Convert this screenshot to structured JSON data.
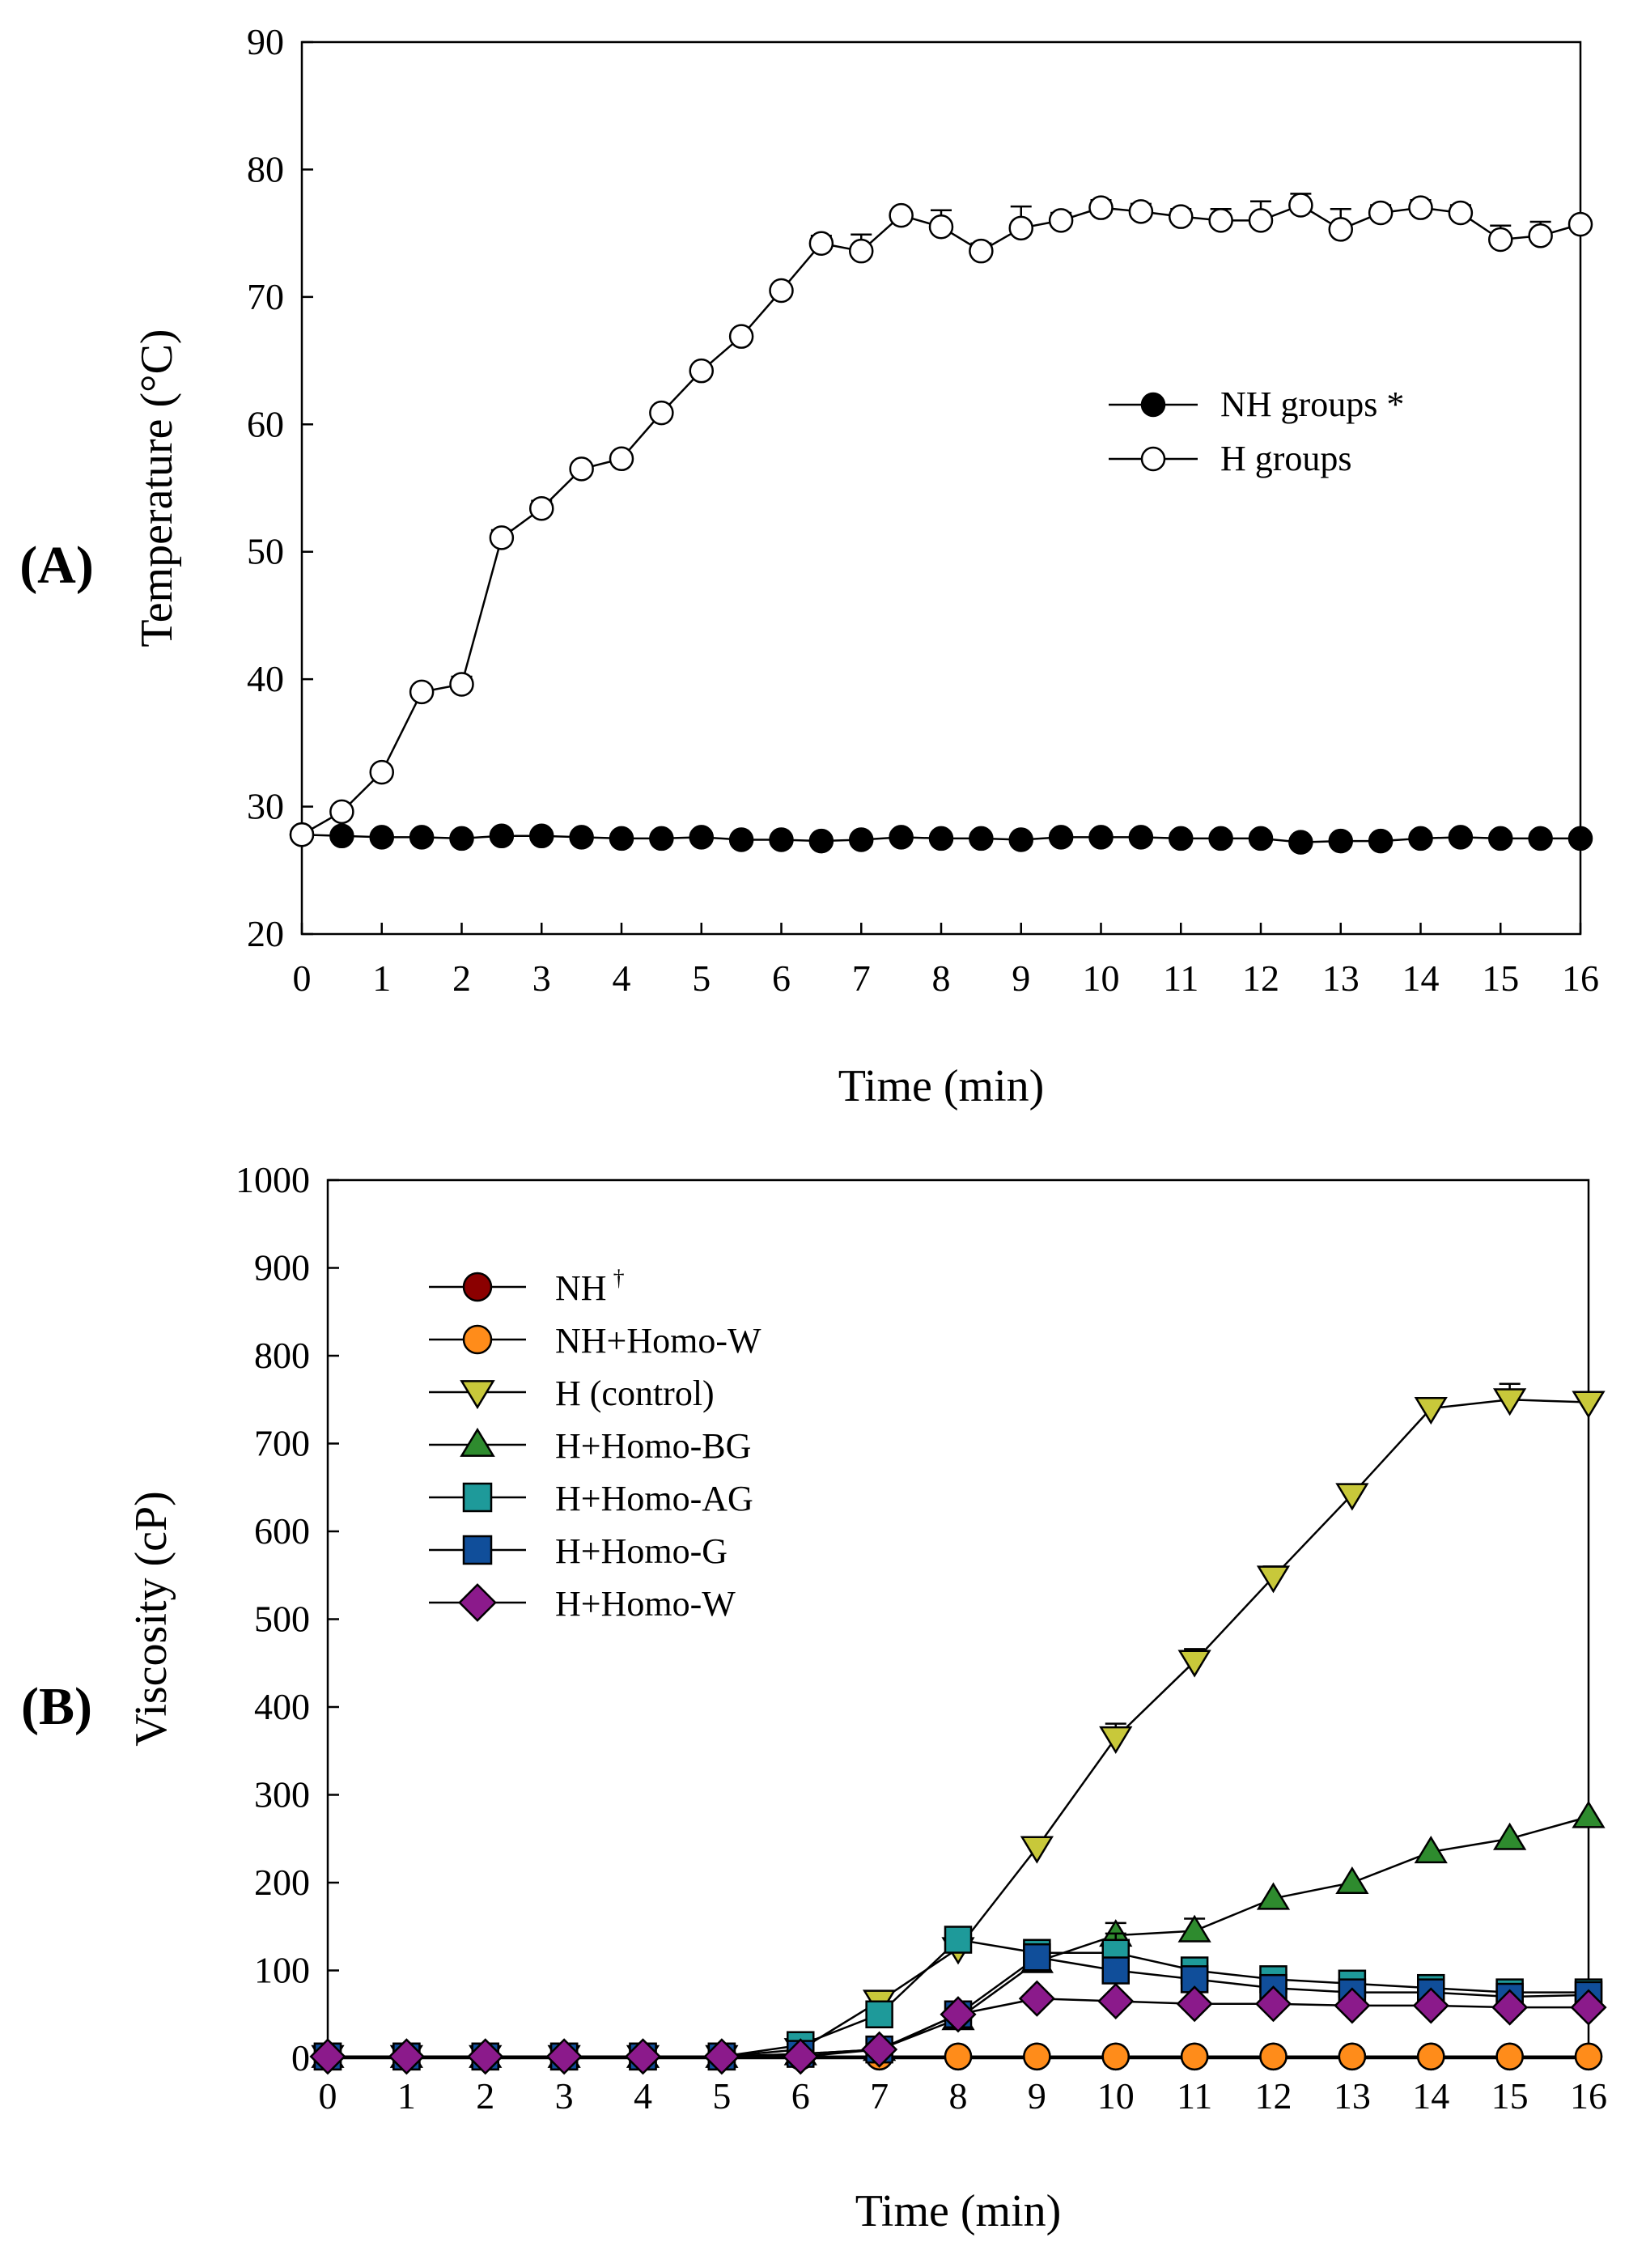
{
  "chart_data": [
    {
      "type": "line",
      "panel_label": "(A)",
      "xlabel": "Time (min)",
      "ylabel": "Temperature (°C)",
      "xlim": [
        0,
        16
      ],
      "ylim": [
        20,
        90
      ],
      "xticks": [
        0,
        1,
        2,
        3,
        4,
        5,
        6,
        7,
        8,
        9,
        10,
        11,
        12,
        13,
        14,
        15,
        16
      ],
      "yticks": [
        20,
        30,
        40,
        50,
        60,
        70,
        80,
        90
      ],
      "grid": false,
      "legend_position": "right-middle",
      "x": [
        0,
        0.5,
        1,
        1.5,
        2,
        2.5,
        3,
        3.5,
        4,
        4.5,
        5,
        5.5,
        6,
        6.5,
        7,
        7.5,
        8,
        8.5,
        9,
        9.5,
        10,
        10.5,
        11,
        11.5,
        12,
        12.5,
        13,
        13.5,
        14,
        14.5,
        15,
        15.5,
        16
      ],
      "series": [
        {
          "name": "NH groups *",
          "marker": "circle",
          "fill": "#000000",
          "values": [
            27.8,
            27.7,
            27.6,
            27.6,
            27.5,
            27.7,
            27.7,
            27.6,
            27.5,
            27.5,
            27.6,
            27.4,
            27.4,
            27.3,
            27.4,
            27.6,
            27.5,
            27.5,
            27.4,
            27.6,
            27.6,
            27.6,
            27.5,
            27.5,
            27.5,
            27.2,
            27.3,
            27.3,
            27.5,
            27.6,
            27.5,
            27.5,
            27.5
          ],
          "errors": [
            0.3,
            0.3,
            0.3,
            0.3,
            0.3,
            0.3,
            0.3,
            0.3,
            0.3,
            0.3,
            0.3,
            0.3,
            0.3,
            0.3,
            0.3,
            0.3,
            0.3,
            0.3,
            0.3,
            0.3,
            0.3,
            0.3,
            0.3,
            0.3,
            0.3,
            0.3,
            0.3,
            0.3,
            0.3,
            0.3,
            0.3,
            0.3,
            0.3
          ]
        },
        {
          "name": "H groups",
          "marker": "circle",
          "fill": "#ffffff",
          "values": [
            27.8,
            29.6,
            32.7,
            39.0,
            39.6,
            51.1,
            53.4,
            56.5,
            57.3,
            60.9,
            64.2,
            66.9,
            70.5,
            74.2,
            73.6,
            76.4,
            75.5,
            73.6,
            75.4,
            76.0,
            77.0,
            76.7,
            76.3,
            76.0,
            76.0,
            77.2,
            75.3,
            76.6,
            77.0,
            76.6,
            74.5,
            74.8,
            75.7
          ],
          "errors": [
            0.4,
            0.4,
            0.5,
            0.5,
            0.6,
            0.6,
            0.6,
            0.5,
            0.5,
            0.5,
            0.5,
            0.5,
            0.5,
            0.6,
            1.3,
            0.5,
            1.3,
            0.6,
            1.7,
            0.6,
            0.6,
            0.6,
            0.6,
            0.9,
            1.5,
            0.9,
            1.6,
            0.6,
            0.6,
            0.6,
            1.1,
            1.1,
            0.5
          ]
        }
      ]
    },
    {
      "type": "line",
      "panel_label": "(B)",
      "xlabel": "Time (min)",
      "ylabel": "Viscosity (cP)",
      "xlim": [
        0,
        16
      ],
      "ylim": [
        0,
        1000
      ],
      "xticks": [
        0,
        1,
        2,
        3,
        4,
        5,
        6,
        7,
        8,
        9,
        10,
        11,
        12,
        13,
        14,
        15,
        16
      ],
      "yticks": [
        0,
        100,
        200,
        300,
        400,
        500,
        600,
        700,
        800,
        900,
        1000
      ],
      "grid": false,
      "legend_position": "top-left",
      "x": [
        0,
        1,
        2,
        3,
        4,
        5,
        6,
        7,
        8,
        9,
        10,
        11,
        12,
        13,
        14,
        15,
        16
      ],
      "series": [
        {
          "name": "NH",
          "superscript": "†",
          "marker": "circle",
          "fill": "#8b0000",
          "values": [
            2,
            2,
            2,
            2,
            2,
            2,
            2,
            2,
            2,
            2,
            2,
            2,
            2,
            2,
            2,
            2,
            2
          ],
          "errors": [
            0,
            0,
            0,
            0,
            0,
            0,
            0,
            0,
            0,
            0,
            0,
            0,
            0,
            0,
            0,
            0,
            0
          ]
        },
        {
          "name": "NH+Homo-W",
          "marker": "circle",
          "fill": "#ff8c1a",
          "values": [
            2,
            2,
            2,
            2,
            2,
            2,
            2,
            2,
            2,
            2,
            2,
            2,
            2,
            2,
            2,
            2,
            2
          ],
          "errors": [
            0,
            0,
            0,
            0,
            0,
            0,
            0,
            0,
            0,
            0,
            0,
            0,
            0,
            0,
            0,
            0,
            0
          ]
        },
        {
          "name": "H (control)",
          "marker": "triangle-down",
          "fill": "#c8c83a",
          "values": [
            2,
            2,
            2,
            2,
            2,
            2,
            10,
            65,
            125,
            240,
            365,
            452,
            548,
            642,
            740,
            750,
            747
          ],
          "errors": [
            0,
            0,
            0,
            0,
            0,
            0,
            2,
            6,
            6,
            8,
            16,
            14,
            12,
            10,
            8,
            18,
            8
          ]
        },
        {
          "name": "H+Homo-BG",
          "marker": "triangle-up",
          "fill": "#2e8b2e",
          "values": [
            2,
            2,
            2,
            2,
            2,
            2,
            5,
            10,
            45,
            110,
            140,
            145,
            182,
            200,
            235,
            250,
            275
          ],
          "errors": [
            0,
            0,
            0,
            0,
            0,
            0,
            2,
            3,
            4,
            8,
            14,
            14,
            8,
            6,
            6,
            6,
            8
          ]
        },
        {
          "name": "H+Homo-AG",
          "marker": "square",
          "fill": "#1e9a9a",
          "values": [
            2,
            2,
            2,
            2,
            2,
            2,
            15,
            50,
            135,
            120,
            120,
            100,
            90,
            85,
            80,
            75,
            75
          ],
          "errors": [
            0,
            0,
            0,
            0,
            0,
            0,
            3,
            6,
            8,
            8,
            22,
            10,
            8,
            6,
            6,
            6,
            6
          ]
        },
        {
          "name": "H+Homo-G",
          "marker": "square",
          "fill": "#104e9a",
          "values": [
            2,
            2,
            2,
            2,
            2,
            2,
            5,
            10,
            50,
            115,
            100,
            90,
            80,
            75,
            75,
            70,
            72
          ],
          "errors": [
            0,
            0,
            0,
            0,
            0,
            0,
            2,
            3,
            5,
            8,
            8,
            6,
            6,
            6,
            5,
            5,
            5
          ]
        },
        {
          "name": "H+Homo-W",
          "marker": "diamond",
          "fill": "#8b1a8b",
          "values": [
            2,
            2,
            2,
            2,
            2,
            2,
            2,
            10,
            50,
            68,
            65,
            62,
            62,
            60,
            60,
            58,
            58
          ],
          "errors": [
            0,
            0,
            0,
            0,
            0,
            0,
            1,
            3,
            4,
            6,
            5,
            5,
            5,
            5,
            5,
            5,
            5
          ]
        }
      ]
    }
  ]
}
